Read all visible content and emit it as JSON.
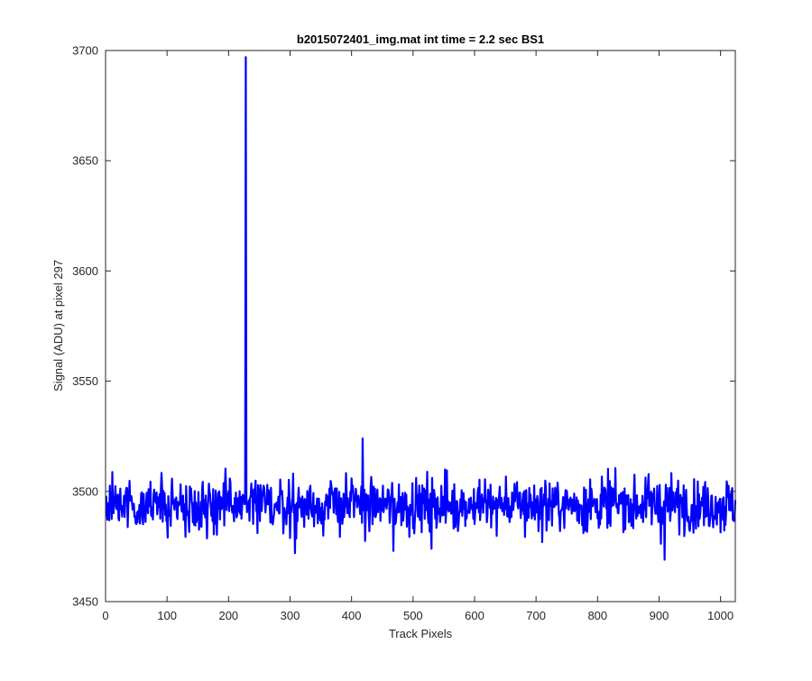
{
  "chart_data": {
    "type": "line",
    "title": "b2015072401_img.mat int time = 2.2 sec   BS1",
    "xlabel": "Track Pixels",
    "ylabel": "Signal (ADU) at pixel 297",
    "xlim": [
      0,
      1024
    ],
    "ylim": [
      3450,
      3700
    ],
    "xticks": [
      0,
      100,
      200,
      300,
      400,
      500,
      600,
      700,
      800,
      900,
      1000
    ],
    "yticks": [
      3450,
      3500,
      3550,
      3600,
      3650,
      3700
    ],
    "xtick_labels": [
      "0",
      "100",
      "200",
      "300",
      "400",
      "500",
      "600",
      "700",
      "800",
      "900",
      "1000"
    ],
    "ytick_labels": [
      "3450",
      "3500",
      "3550",
      "3600",
      "3650",
      "3700"
    ],
    "grid": false,
    "box": true,
    "series": [
      {
        "color": "#0000ff",
        "n_points": 1024,
        "baseline": 3494,
        "noise_range": [
          3469,
          3524
        ],
        "notable_points": [
          {
            "x": 228,
            "y": 3697
          },
          {
            "x": 229,
            "y": 3497
          },
          {
            "x": 418,
            "y": 3524
          },
          {
            "x": 909,
            "y": 3469
          },
          {
            "x": 308,
            "y": 3472
          },
          {
            "x": 468,
            "y": 3473
          },
          {
            "x": 530,
            "y": 3474
          }
        ]
      }
    ]
  }
}
